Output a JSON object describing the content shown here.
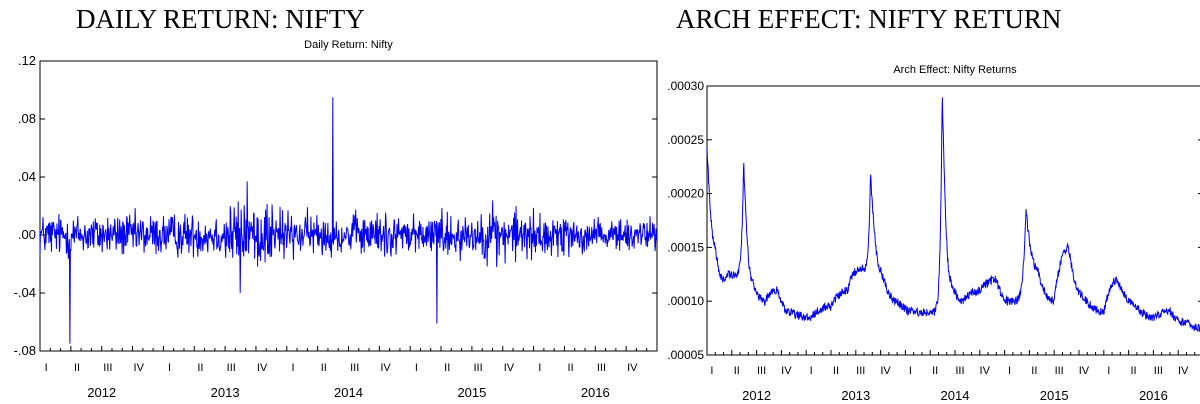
{
  "headings": {
    "left": "DAILY RETURN: NIFTY",
    "right": "ARCH EFFECT: NIFTY RETURN"
  },
  "colors": {
    "line": "#0000ee",
    "axis": "#000000",
    "text": "#000000"
  },
  "chart_data": [
    {
      "type": "line",
      "title": "Daily Return: Nifty",
      "xlabel": "",
      "ylabel": "",
      "x_range": [
        "2012-01-01",
        "2016-12-31"
      ],
      "ylim": [
        -0.08,
        0.12
      ],
      "y_ticks": [
        ".12",
        ".08",
        ".04",
        ".00",
        "-.04",
        "-.08"
      ],
      "y_tick_values": [
        0.12,
        0.08,
        0.04,
        0.0,
        -0.04,
        -0.08
      ],
      "x_quarter_labels": [
        "I",
        "II",
        "III",
        "IV",
        "I",
        "II",
        "III",
        "IV",
        "I",
        "II",
        "III",
        "IV",
        "I",
        "II",
        "III",
        "IV",
        "I",
        "II",
        "III",
        "IV"
      ],
      "x_year_labels": [
        "2012",
        "2013",
        "2014",
        "2015",
        "2016"
      ],
      "grid": false,
      "legend": "none",
      "series": [
        {
          "values_description_points": [
            [
              "2012-01-02",
              0.02
            ],
            [
              "2012-02-01",
              -0.01
            ],
            [
              "2012-03-01",
              0.015
            ],
            [
              "2012-03-29",
              -0.075
            ],
            [
              "2012-04-15",
              0.02
            ],
            [
              "2012-06-01",
              -0.02
            ],
            [
              "2012-08-01",
              0.015
            ],
            [
              "2012-10-01",
              0.025
            ],
            [
              "2012-12-01",
              -0.01
            ],
            [
              "2013-02-01",
              0.015
            ],
            [
              "2013-04-01",
              -0.02
            ],
            [
              "2013-06-01",
              0.02
            ],
            [
              "2013-08-15",
              -0.04
            ],
            [
              "2013-09-05",
              0.037
            ],
            [
              "2013-10-01",
              -0.02
            ],
            [
              "2013-12-01",
              0.015
            ],
            [
              "2014-02-01",
              -0.015
            ],
            [
              "2014-04-01",
              0.02
            ],
            [
              "2014-05-16",
              0.095
            ],
            [
              "2014-06-01",
              -0.015
            ],
            [
              "2014-08-01",
              0.015
            ],
            [
              "2014-10-01",
              -0.02
            ],
            [
              "2014-12-01",
              0.02
            ],
            [
              "2015-02-01",
              0.025
            ],
            [
              "2015-03-20",
              -0.061
            ],
            [
              "2015-05-01",
              0.02
            ],
            [
              "2015-08-24",
              -0.025
            ],
            [
              "2015-09-01",
              0.033
            ],
            [
              "2015-11-01",
              -0.015
            ],
            [
              "2016-01-01",
              0.015
            ],
            [
              "2016-03-01",
              -0.02
            ],
            [
              "2016-06-24",
              0.015
            ],
            [
              "2016-09-01",
              -0.01
            ],
            [
              "2016-11-09",
              0.02
            ],
            [
              "2016-12-30",
              0.005
            ]
          ]
        }
      ]
    },
    {
      "type": "line",
      "title": "Arch Effect: Nifty Returns",
      "xlabel": "",
      "ylabel": "",
      "x_range": [
        "2012-01-01",
        "2016-12-31"
      ],
      "ylim": [
        5e-05,
        0.0003
      ],
      "y_ticks": [
        ".00030",
        ".00025",
        ".00020",
        ".00015",
        ".00010",
        ".00005"
      ],
      "y_tick_values": [
        0.0003,
        0.00025,
        0.0002,
        0.00015,
        0.0001,
        5e-05
      ],
      "x_quarter_labels": [
        "I",
        "II",
        "III",
        "IV",
        "I",
        "II",
        "III",
        "IV",
        "I",
        "II",
        "III",
        "IV",
        "I",
        "II",
        "III",
        "IV",
        "I",
        "II",
        "III",
        "IV"
      ],
      "x_year_labels": [
        "2012",
        "2013",
        "2014",
        "2015",
        "2016"
      ],
      "grid": false,
      "legend": "none",
      "series": [
        {
          "points": [
            [
              "2012-01-02",
              0.00024
            ],
            [
              "2012-02-01",
              0.00015
            ],
            [
              "2012-03-01",
              0.00012
            ],
            [
              "2012-04-01",
              0.000125
            ],
            [
              "2012-05-15",
              0.00023
            ],
            [
              "2012-06-15",
              0.00012
            ],
            [
              "2012-08-01",
              0.0001
            ],
            [
              "2012-09-15",
              0.00011
            ],
            [
              "2012-11-01",
              9e-05
            ],
            [
              "2013-01-15",
              8.5e-05
            ],
            [
              "2013-04-01",
              9.5e-05
            ],
            [
              "2013-06-01",
              0.00011
            ],
            [
              "2013-07-15",
              0.00013
            ],
            [
              "2013-08-25",
              0.00022
            ],
            [
              "2013-10-01",
              0.00013
            ],
            [
              "2013-12-01",
              0.0001
            ],
            [
              "2014-02-01",
              9e-05
            ],
            [
              "2014-04-01",
              9e-05
            ],
            [
              "2014-05-16",
              0.000295
            ],
            [
              "2014-06-15",
              0.00012
            ],
            [
              "2014-08-01",
              0.0001
            ],
            [
              "2014-10-01",
              0.00011
            ],
            [
              "2014-12-01",
              0.00012
            ],
            [
              "2015-01-15",
              0.0001
            ],
            [
              "2015-03-20",
              0.000185
            ],
            [
              "2015-05-01",
              0.00013
            ],
            [
              "2015-07-01",
              0.0001
            ],
            [
              "2015-08-24",
              0.00015
            ],
            [
              "2015-10-15",
              0.000105
            ],
            [
              "2016-01-01",
              9e-05
            ],
            [
              "2016-02-20",
              0.00012
            ],
            [
              "2016-04-15",
              0.0001
            ],
            [
              "2016-07-01",
              8.5e-05
            ],
            [
              "2016-09-01",
              9e-05
            ],
            [
              "2016-11-01",
              8e-05
            ],
            [
              "2016-12-30",
              7.5e-05
            ]
          ]
        }
      ]
    }
  ]
}
